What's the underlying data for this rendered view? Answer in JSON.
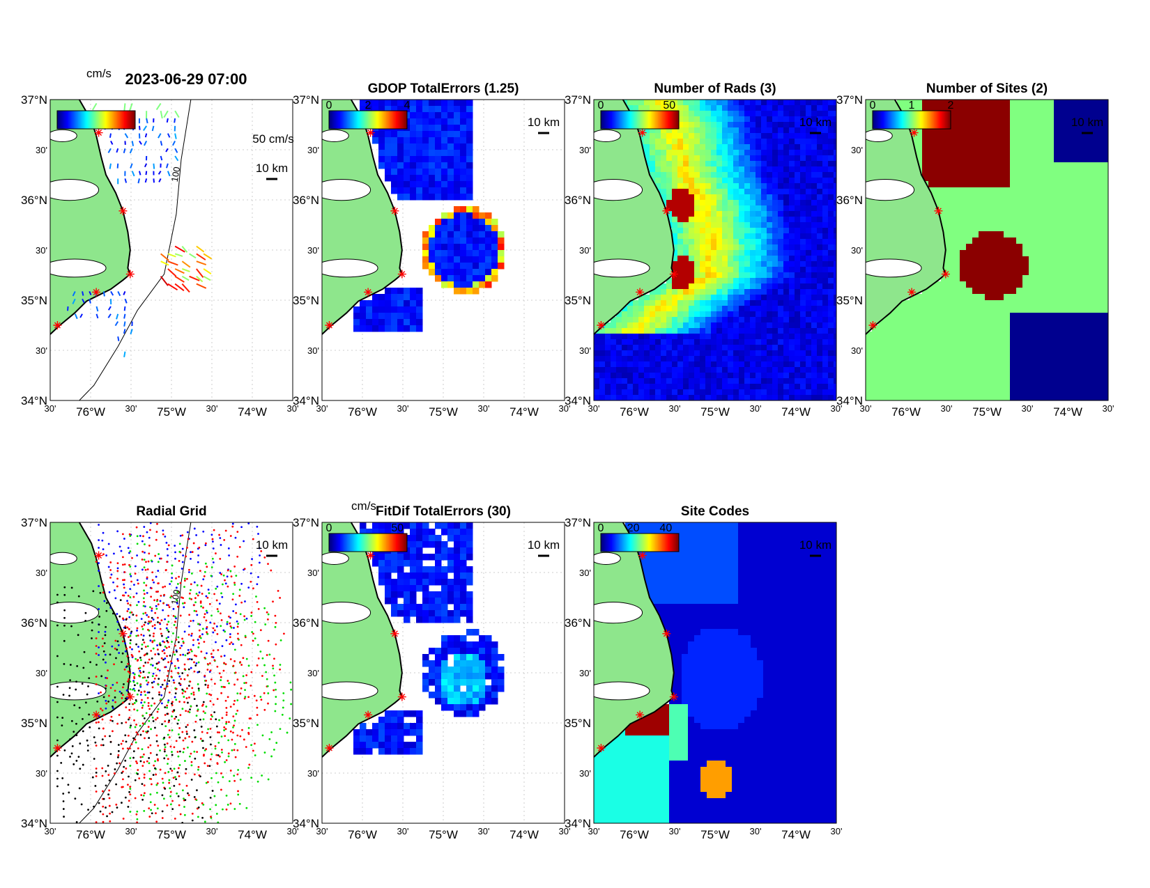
{
  "figure_title": "2023-06-29 07:00",
  "axes": {
    "lat_labels": [
      "37°N",
      "30'",
      "36°N",
      "30'",
      "35°N",
      "30'",
      "34°N"
    ],
    "lon_labels": [
      "30'",
      "76°W",
      "30'",
      "75°W",
      "30'",
      "74°W",
      "30'"
    ]
  },
  "scale_label": "10 km",
  "vector_scale_label": "50 cm/s",
  "contour_label": "100",
  "gdop_contour_label": "1.25",
  "unit_label": "cm/s",
  "panels": [
    {
      "id": "currents",
      "title": "",
      "cb_ticks": [],
      "cb_unit": "cm/s"
    },
    {
      "id": "gdop",
      "title": "GDOP TotalErrors (1.25)",
      "cb_ticks": [
        "0",
        "2",
        "4"
      ]
    },
    {
      "id": "nrads",
      "title": "Number of Rads (3)",
      "cb_ticks": [
        "0",
        "50"
      ]
    },
    {
      "id": "nsites",
      "title": "Number of Sites (2)",
      "cb_ticks": [
        "0",
        "1",
        "2"
      ]
    },
    {
      "id": "radgrid",
      "title": "Radial Grid",
      "cb_ticks": []
    },
    {
      "id": "fitdif",
      "title": "FitDif TotalErrors (30)",
      "cb_ticks": [
        "0",
        "50"
      ],
      "cb_unit": "cm/s"
    },
    {
      "id": "sitecodes",
      "title": "Site Codes",
      "cb_ticks": [
        "0",
        "20",
        "40"
      ]
    }
  ],
  "colors": {
    "land": "#8ee68c",
    "coast": "#000000",
    "site_marker": "#ff0000",
    "jet_low": "#00008f",
    "jet_high": "#800000",
    "site_colors": [
      "#0000ff",
      "#ff0000",
      "#00dd00",
      "#000000"
    ]
  }
}
